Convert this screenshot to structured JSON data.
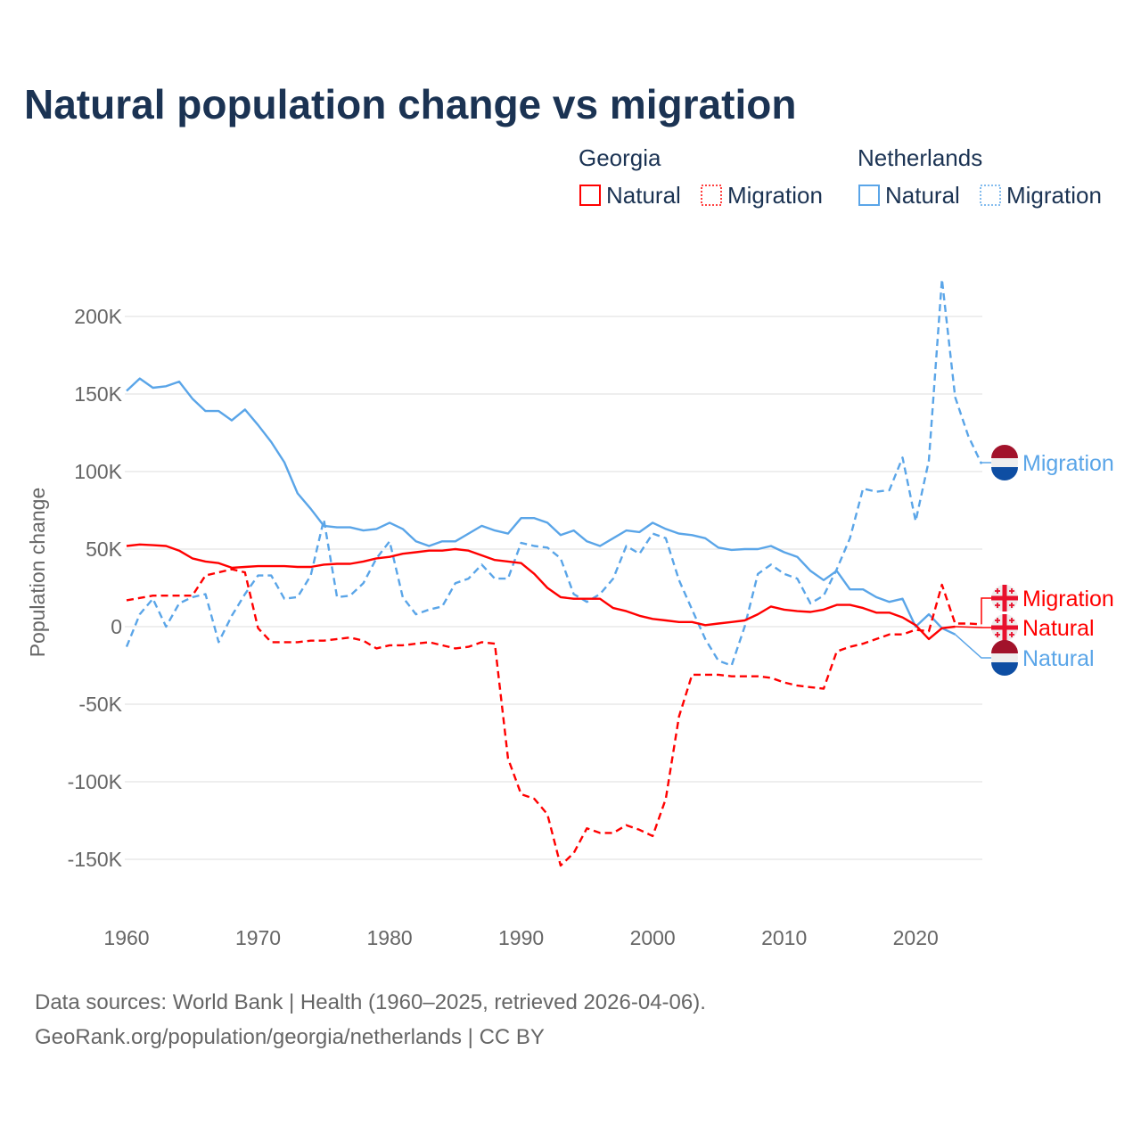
{
  "title": "Natural population change vs migration",
  "legend": {
    "groups": [
      {
        "name": "Georgia",
        "items": [
          "Natural",
          "Migration"
        ]
      },
      {
        "name": "Netherlands",
        "items": [
          "Natural",
          "Migration"
        ]
      }
    ]
  },
  "source_lines": [
    "Data sources: World Bank | Health (1960–2025, retrieved 2026-04-06).",
    "GeoRank.org/population/georgia/netherlands | CC BY"
  ],
  "colors": {
    "georgia": "#ff0000",
    "netherlands": "#5aa5e8",
    "title": "#1b3353"
  },
  "chart_data": {
    "type": "line",
    "title": "Natural population change vs migration",
    "xlabel": "",
    "ylabel": "Population change",
    "xlim": [
      1960,
      2025
    ],
    "ylim": [
      -175,
      225
    ],
    "y_unit": "thousands",
    "x_ticks": [
      "1960",
      "1970",
      "1980",
      "1990",
      "2000",
      "2010",
      "2020"
    ],
    "y_ticks": [
      {
        "v": 200,
        "label": "200K"
      },
      {
        "v": 150,
        "label": "150K"
      },
      {
        "v": 100,
        "label": "100K"
      },
      {
        "v": 50,
        "label": "50K"
      },
      {
        "v": 0,
        "label": "0"
      },
      {
        "v": -50,
        "label": "-50K"
      },
      {
        "v": -100,
        "label": "-100K"
      },
      {
        "v": -150,
        "label": "-150K"
      }
    ],
    "grid": true,
    "legend_position": "top-right",
    "series": [
      {
        "name": "Netherlands Natural",
        "label": "Natural",
        "country": "netherlands",
        "dashed": false,
        "start": 1960,
        "values": [
          152,
          160,
          154,
          155,
          158,
          147,
          139,
          139,
          133,
          140,
          130,
          119,
          106,
          86,
          76,
          65,
          64,
          64,
          62,
          63,
          67,
          63,
          55,
          52,
          55,
          55,
          60,
          65,
          62,
          60,
          70,
          70,
          67,
          59,
          62,
          55,
          52,
          57,
          62,
          61,
          67,
          63,
          60,
          59,
          57,
          51,
          49.5,
          50,
          50,
          52,
          48,
          45,
          36,
          30,
          36,
          24,
          24,
          19,
          16,
          18,
          0,
          8,
          -1,
          -5
        ]
      },
      {
        "name": "Netherlands Migration",
        "label": "Migration",
        "country": "netherlands",
        "dashed": true,
        "start": 1960,
        "values": [
          -13,
          8,
          18,
          0,
          15,
          19,
          21,
          -10,
          7,
          21,
          33,
          33,
          18,
          19,
          33,
          69,
          19,
          20,
          28,
          44,
          55,
          19,
          8,
          11,
          13,
          28,
          31,
          40,
          31,
          31,
          54,
          52,
          51,
          44,
          21,
          16,
          21,
          31,
          52,
          47,
          60,
          57,
          30,
          11,
          -8,
          -22,
          -25,
          0,
          34,
          40,
          34,
          31,
          15,
          20,
          37,
          57,
          89,
          87,
          88,
          109,
          68,
          107,
          224,
          148,
          123,
          105
        ]
      },
      {
        "name": "Georgia Natural",
        "label": "Natural",
        "country": "georgia",
        "dashed": false,
        "start": 1960,
        "values": [
          52,
          53,
          52.5,
          52,
          49,
          44,
          42,
          41,
          38,
          38.5,
          39,
          39,
          39,
          38.5,
          38.5,
          40,
          40.5,
          40.5,
          42,
          44,
          45,
          47,
          48,
          49,
          49,
          50,
          49,
          46,
          43,
          42,
          41,
          34,
          25,
          19,
          18,
          18,
          18,
          12,
          10,
          7,
          5,
          4,
          3,
          3,
          1,
          2,
          3,
          4,
          8,
          13,
          11,
          10,
          9.5,
          11,
          14,
          14,
          12,
          9,
          9,
          6,
          1,
          -8,
          -1,
          0
        ]
      },
      {
        "name": "Georgia Migration",
        "label": "Migration",
        "country": "georgia",
        "dashed": true,
        "start": 1960,
        "values": [
          17,
          18.5,
          20,
          20,
          20,
          20,
          33,
          35,
          37,
          35,
          -1,
          -10,
          -10,
          -10,
          -9,
          -9,
          -8,
          -7,
          -9,
          -14,
          -12,
          -12,
          -11,
          -10,
          -12,
          -14,
          -13,
          -10,
          -11,
          -85,
          -108,
          -111,
          -121,
          -154,
          -146,
          -130,
          -133,
          -133,
          -128,
          -131,
          -135,
          -111,
          -58,
          -31,
          -31,
          -31,
          -32,
          -32,
          -32,
          -33,
          -36,
          -38,
          -39,
          -40,
          -16,
          -13,
          -11,
          -8,
          -5,
          -5,
          -2,
          -3,
          27,
          2,
          2,
          1.5
        ]
      }
    ],
    "end_labels": [
      {
        "series": "Netherlands Migration",
        "text": "Migration"
      },
      {
        "series": "Georgia Migration",
        "text": "Migration"
      },
      {
        "series": "Georgia Natural",
        "text": "Natural"
      },
      {
        "series": "Netherlands Natural",
        "text": "Natural"
      }
    ]
  }
}
